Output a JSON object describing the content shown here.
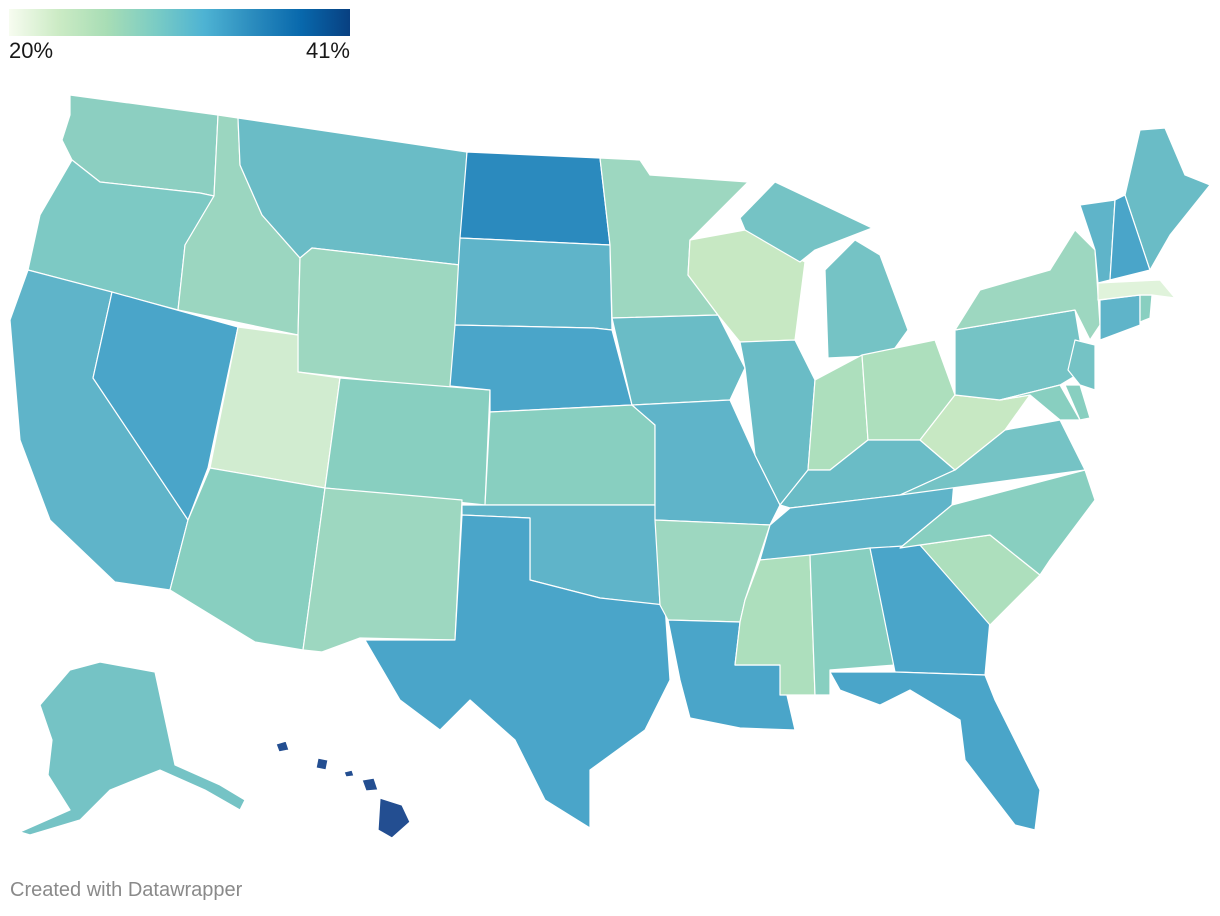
{
  "legend": {
    "min_label": "20%",
    "max_label": "41%",
    "colors": [
      "#f7fcf0",
      "#ccebc5",
      "#a8ddb5",
      "#7bccc4",
      "#4eb3d3",
      "#2b8cbe",
      "#0868ac",
      "#084081"
    ]
  },
  "credit": "Created with Datawrapper",
  "map": {
    "type": "choropleth",
    "region": "United States",
    "states": [
      {
        "name": "Washington",
        "color": "#8ccfc1"
      },
      {
        "name": "Oregon",
        "color": "#7dc9c4"
      },
      {
        "name": "California",
        "color": "#5fb4c9"
      },
      {
        "name": "Nevada",
        "color": "#4aa5c9"
      },
      {
        "name": "Idaho",
        "color": "#9bd6c0"
      },
      {
        "name": "Montana",
        "color": "#6abcc6"
      },
      {
        "name": "Wyoming",
        "color": "#9dd7c0"
      },
      {
        "name": "Utah",
        "color": "#d1ecd0"
      },
      {
        "name": "Arizona",
        "color": "#88cfc0"
      },
      {
        "name": "Colorado",
        "color": "#88cfc0"
      },
      {
        "name": "New Mexico",
        "color": "#9dd7c0"
      },
      {
        "name": "North Dakota",
        "color": "#2b8abe"
      },
      {
        "name": "South Dakota",
        "color": "#5fb4c9"
      },
      {
        "name": "Nebraska",
        "color": "#4aa5c9"
      },
      {
        "name": "Kansas",
        "color": "#88cfc0"
      },
      {
        "name": "Oklahoma",
        "color": "#5fb4c9"
      },
      {
        "name": "Texas",
        "color": "#4aa5c9"
      },
      {
        "name": "Minnesota",
        "color": "#9dd7c0"
      },
      {
        "name": "Iowa",
        "color": "#6abcc6"
      },
      {
        "name": "Missouri",
        "color": "#5fb4c9"
      },
      {
        "name": "Arkansas",
        "color": "#9dd7c0"
      },
      {
        "name": "Louisiana",
        "color": "#4aa5c9"
      },
      {
        "name": "Wisconsin",
        "color": "#c7e8c3"
      },
      {
        "name": "Illinois",
        "color": "#6abcc6"
      },
      {
        "name": "Michigan",
        "color": "#75c3c5"
      },
      {
        "name": "Indiana",
        "color": "#addfbd"
      },
      {
        "name": "Ohio",
        "color": "#addfbd"
      },
      {
        "name": "Kentucky",
        "color": "#6abcc6"
      },
      {
        "name": "Tennessee",
        "color": "#5fb4c9"
      },
      {
        "name": "Mississippi",
        "color": "#addfbd"
      },
      {
        "name": "Alabama",
        "color": "#88cfc0"
      },
      {
        "name": "Georgia",
        "color": "#4aa5c9"
      },
      {
        "name": "Florida",
        "color": "#4aa5c9"
      },
      {
        "name": "South Carolina",
        "color": "#addfbd"
      },
      {
        "name": "North Carolina",
        "color": "#88cfc0"
      },
      {
        "name": "Virginia",
        "color": "#75c3c5"
      },
      {
        "name": "West Virginia",
        "color": "#c7e8c3"
      },
      {
        "name": "Pennsylvania",
        "color": "#75c3c5"
      },
      {
        "name": "New York",
        "color": "#9dd7c0"
      },
      {
        "name": "Maryland",
        "color": "#88cfc0"
      },
      {
        "name": "Delaware",
        "color": "#88cfc0"
      },
      {
        "name": "New Jersey",
        "color": "#75c3c5"
      },
      {
        "name": "Connecticut",
        "color": "#5fb4c9"
      },
      {
        "name": "Rhode Island",
        "color": "#88cfc0"
      },
      {
        "name": "Massachusetts",
        "color": "#e0f3db"
      },
      {
        "name": "Vermont",
        "color": "#5fb4c9"
      },
      {
        "name": "New Hampshire",
        "color": "#4aa5c9"
      },
      {
        "name": "Maine",
        "color": "#6abcc6"
      },
      {
        "name": "Alaska",
        "color": "#75c3c5"
      },
      {
        "name": "Hawaii",
        "color": "#234e91"
      }
    ]
  }
}
